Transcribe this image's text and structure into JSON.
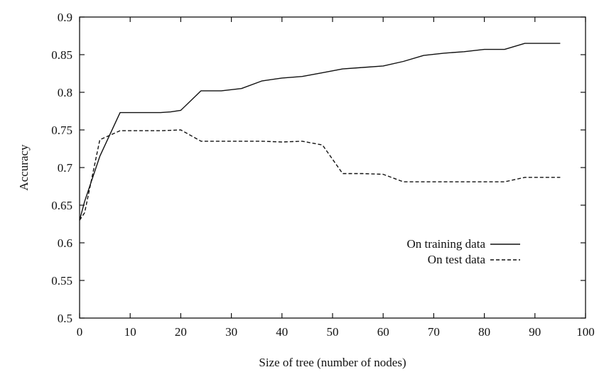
{
  "chart_data": {
    "type": "line",
    "title": "",
    "xlabel": "Size of tree (number of nodes)",
    "ylabel": "Accuracy",
    "xlim": [
      0,
      100
    ],
    "ylim": [
      0.5,
      0.9
    ],
    "x_ticks": [
      0,
      10,
      20,
      30,
      40,
      50,
      60,
      70,
      80,
      90,
      100
    ],
    "y_ticks": [
      0.5,
      0.55,
      0.6,
      0.65,
      0.7,
      0.75,
      0.8,
      0.85,
      0.9
    ],
    "x_tick_labels": [
      "0",
      "10",
      "20",
      "30",
      "40",
      "50",
      "60",
      "70",
      "80",
      "90",
      "100"
    ],
    "y_tick_labels": [
      "0.5",
      "0.55",
      "0.6",
      "0.65",
      "0.7",
      "0.75",
      "0.8",
      "0.85",
      "0.9"
    ],
    "grid": false,
    "legend_position": "right",
    "series": [
      {
        "name": "On training data",
        "style": "solid",
        "color": "#111111",
        "x": [
          0,
          1,
          4,
          8,
          12,
          16,
          18,
          20,
          24,
          28,
          32,
          36,
          40,
          44,
          48,
          52,
          56,
          60,
          64,
          68,
          72,
          76,
          80,
          84,
          88,
          92,
          95
        ],
        "y": [
          0.63,
          0.655,
          0.715,
          0.773,
          0.773,
          0.773,
          0.774,
          0.776,
          0.802,
          0.802,
          0.805,
          0.815,
          0.819,
          0.821,
          0.826,
          0.831,
          0.833,
          0.835,
          0.841,
          0.849,
          0.852,
          0.854,
          0.857,
          0.857,
          0.865,
          0.865,
          0.865
        ]
      },
      {
        "name": "On test data",
        "style": "dashed",
        "color": "#111111",
        "x": [
          0,
          1,
          4,
          8,
          12,
          16,
          20,
          24,
          28,
          32,
          36,
          40,
          44,
          48,
          52,
          56,
          60,
          64,
          68,
          72,
          76,
          80,
          84,
          88,
          92,
          95
        ],
        "y": [
          0.63,
          0.64,
          0.737,
          0.749,
          0.749,
          0.749,
          0.75,
          0.735,
          0.735,
          0.735,
          0.735,
          0.734,
          0.735,
          0.73,
          0.692,
          0.692,
          0.691,
          0.681,
          0.681,
          0.681,
          0.681,
          0.681,
          0.681,
          0.687,
          0.687,
          0.687
        ]
      }
    ]
  }
}
